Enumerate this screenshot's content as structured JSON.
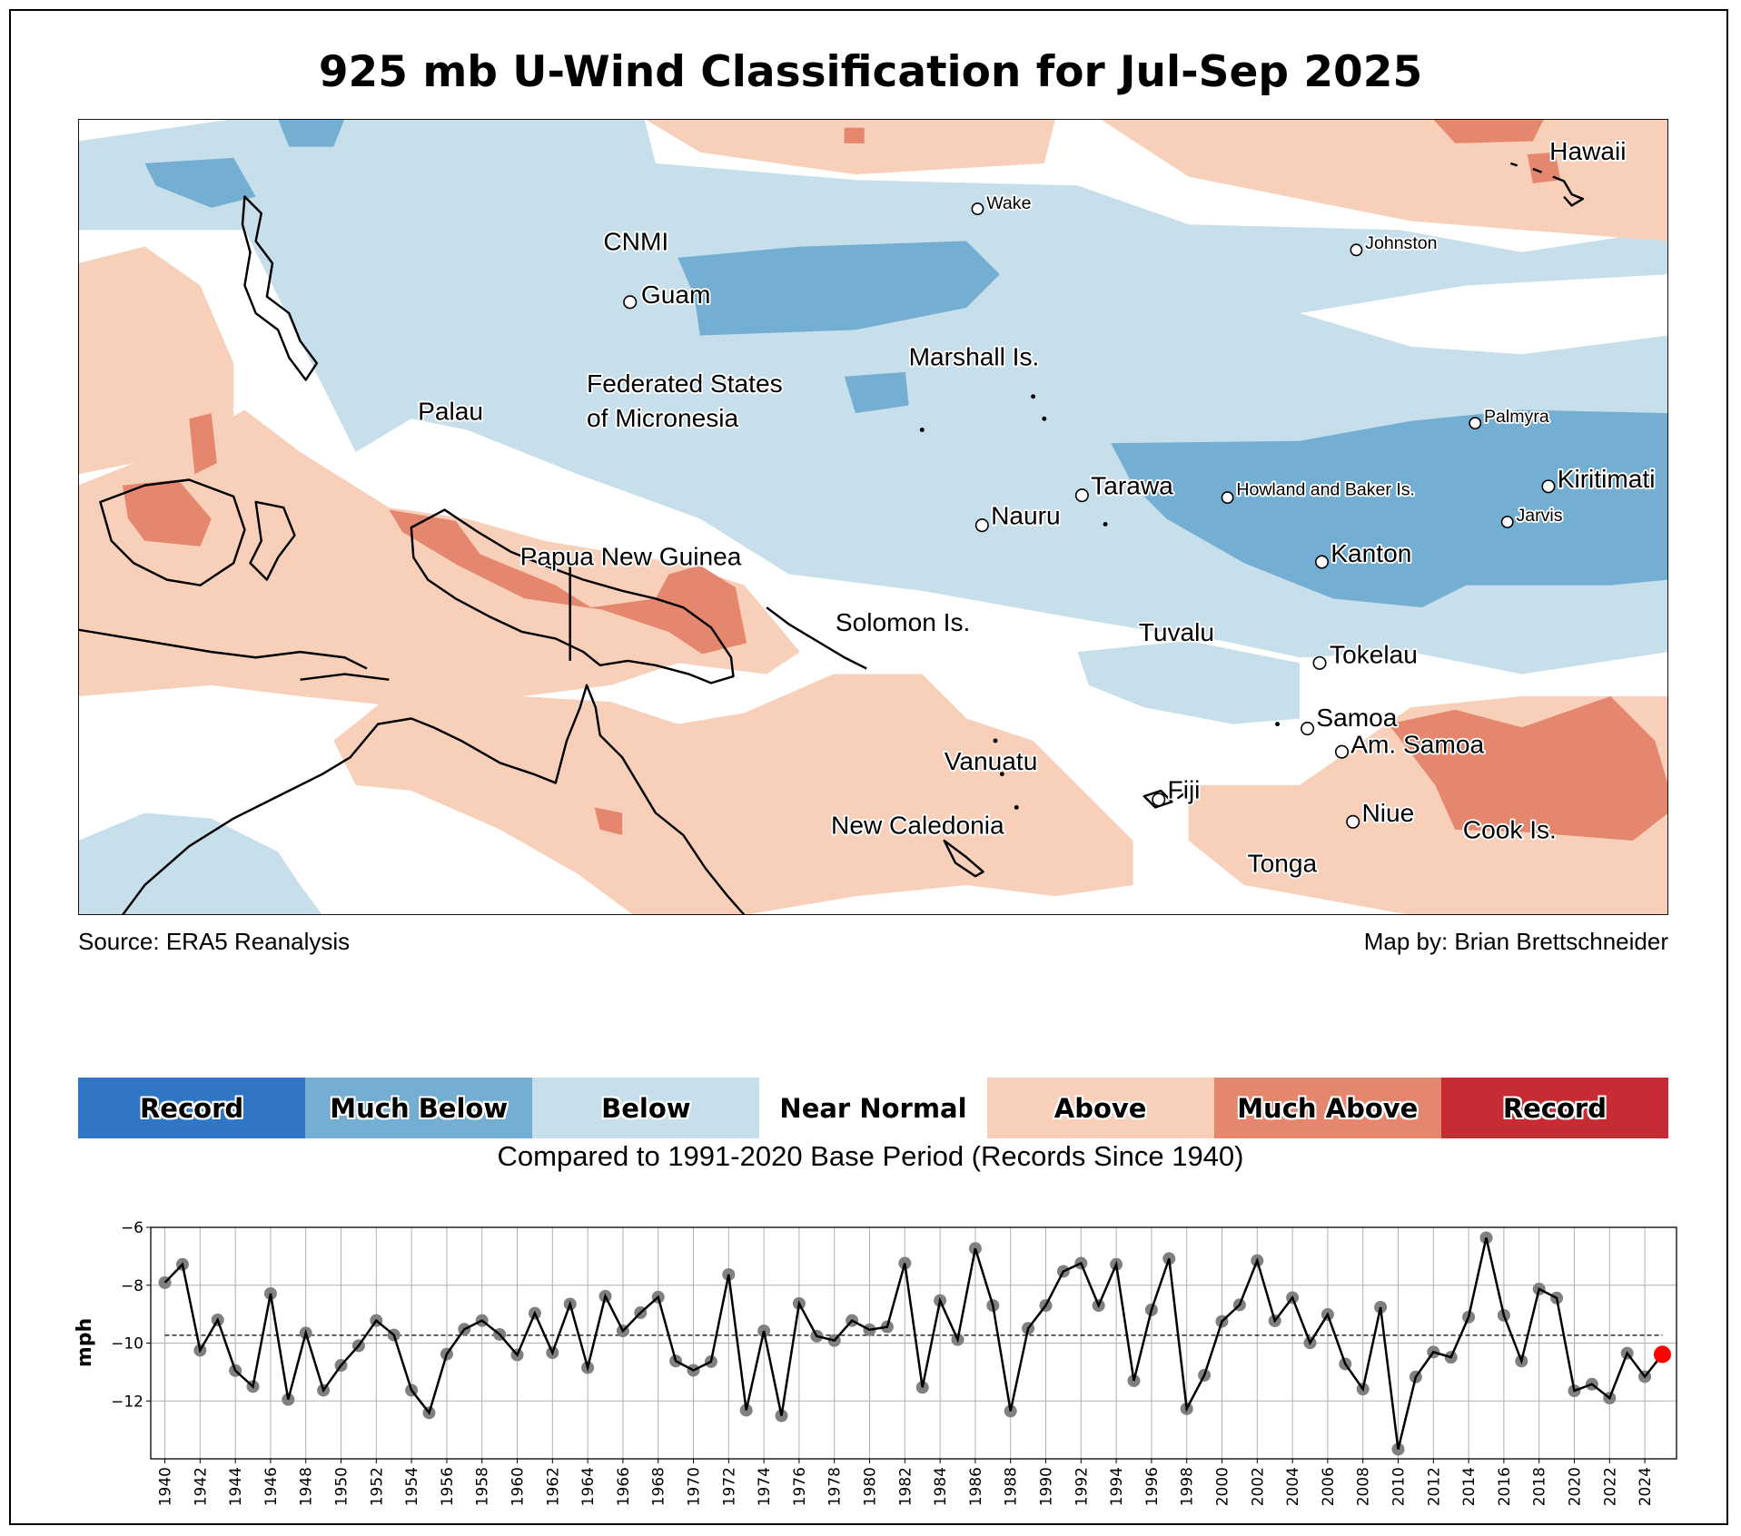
{
  "title": "925 mb U-Wind Classification for Jul-Sep 2025",
  "map": {
    "source": "Source: ERA5 Reanalysis",
    "credit": "Map by: Brian Brettschneider",
    "labels": {
      "hawaii": "Hawaii",
      "wake": "Wake",
      "johnston": "Johnston",
      "cnmi": "CNMI",
      "guam": "Guam",
      "marshall": "Marshall Is.",
      "fsm1": "Federated States",
      "fsm2": "of Micronesia",
      "palau": "Palau",
      "palmyra": "Palmyra",
      "kiritimati": "Kiritimati",
      "tarawa": "Tarawa",
      "howland": "Howland and Baker Is.",
      "nauru": "Nauru",
      "jarvis": "Jarvis",
      "kanton": "Kanton",
      "png": "Papua New Guinea",
      "solomon": "Solomon Is.",
      "tuvalu": "Tuvalu",
      "tokelau": "Tokelau",
      "samoa": "Samoa",
      "amsamoa": "Am. Samoa",
      "vanuatu": "Vanuatu",
      "fiji": "Fiji",
      "niue": "Niue",
      "cook": "Cook Is.",
      "newcal": "New Caledonia",
      "tonga": "Tonga"
    }
  },
  "legend": {
    "items": [
      {
        "label": "Record",
        "color": "#3076C4"
      },
      {
        "label": "Much Below",
        "color": "#74AFD3"
      },
      {
        "label": "Below",
        "color": "#C6DFEB"
      },
      {
        "label": "Near Normal",
        "color": "#FFFFFF"
      },
      {
        "label": "Above",
        "color": "#F8D0BA"
      },
      {
        "label": "Much Above",
        "color": "#E5876F"
      },
      {
        "label": "Record",
        "color": "#C72C35"
      }
    ],
    "note": "Compared to 1991-2020 Base Period   (Records Since 1940)"
  },
  "chart_data": {
    "type": "line",
    "title": "",
    "xlabel": "",
    "ylabel": "mph",
    "xlim": [
      1939.2,
      2025.8
    ],
    "ylim": [
      -14,
      -6
    ],
    "yticks": [
      -6,
      -8,
      -10,
      -12
    ],
    "xticks_step": 2,
    "grid": true,
    "mean_line": -9.73,
    "highlight_color": "#FF0000",
    "point_color": "#808080",
    "x": [
      1940,
      1941,
      1942,
      1943,
      1944,
      1945,
      1946,
      1947,
      1948,
      1949,
      1950,
      1951,
      1952,
      1953,
      1954,
      1955,
      1956,
      1957,
      1958,
      1959,
      1960,
      1961,
      1962,
      1963,
      1964,
      1965,
      1966,
      1967,
      1968,
      1969,
      1970,
      1971,
      1972,
      1973,
      1974,
      1975,
      1976,
      1977,
      1978,
      1979,
      1980,
      1981,
      1982,
      1983,
      1984,
      1985,
      1986,
      1987,
      1988,
      1989,
      1990,
      1991,
      1992,
      1993,
      1994,
      1995,
      1996,
      1997,
      1998,
      1999,
      2000,
      2001,
      2002,
      2003,
      2004,
      2005,
      2006,
      2007,
      2008,
      2009,
      2010,
      2011,
      2012,
      2013,
      2014,
      2015,
      2016,
      2017,
      2018,
      2019,
      2020,
      2021,
      2022,
      2023,
      2024,
      2025
    ],
    "values": [
      -7.91,
      -7.28,
      -10.25,
      -9.2,
      -10.95,
      -11.5,
      -8.29,
      -11.95,
      -9.65,
      -11.63,
      -10.77,
      -10.09,
      -9.22,
      -9.72,
      -11.63,
      -12.41,
      -10.38,
      -9.52,
      -9.22,
      -9.7,
      -10.41,
      -8.97,
      -10.33,
      -8.65,
      -10.85,
      -8.38,
      -9.58,
      -8.95,
      -8.41,
      -10.62,
      -10.94,
      -10.64,
      -7.63,
      -12.32,
      -9.58,
      -12.51,
      -8.63,
      -9.76,
      -9.91,
      -9.22,
      -9.54,
      -9.44,
      -7.24,
      -11.53,
      -8.53,
      -9.88,
      -6.73,
      -8.7,
      -12.35,
      -9.49,
      -8.7,
      -7.52,
      -7.24,
      -8.7,
      -7.28,
      -11.3,
      -8.85,
      -7.08,
      -12.27,
      -11.11,
      -9.25,
      -8.68,
      -7.15,
      -9.23,
      -8.43,
      -9.99,
      -9.01,
      -10.72,
      -11.59,
      -8.76,
      -13.67,
      -11.17,
      -10.31,
      -10.49,
      -9.1,
      -6.36,
      -9.04,
      -10.62,
      -8.13,
      -8.44,
      -11.65,
      -11.42,
      -11.9,
      -10.35,
      -11.16,
      -10.39
    ]
  }
}
